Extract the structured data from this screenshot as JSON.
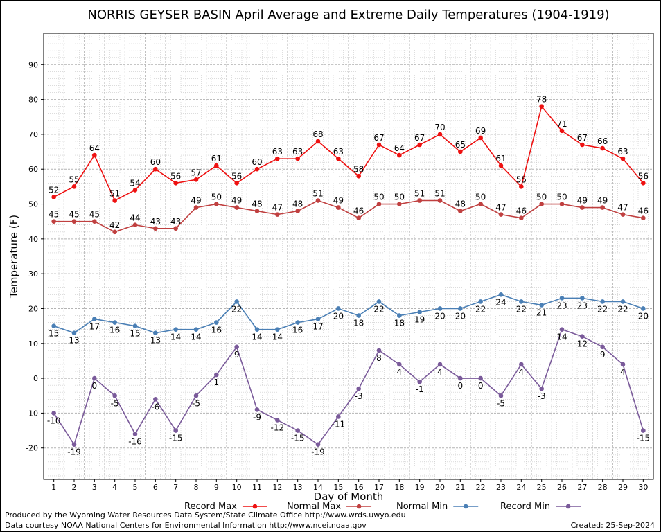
{
  "chart_data": {
    "type": "line",
    "title": "NORRIS GEYSER BASIN April Average and Extreme Daily Temperatures (1904-1919)",
    "xlabel": "Day of Month",
    "ylabel": "Temperature (F)",
    "x": [
      1,
      2,
      3,
      4,
      5,
      6,
      7,
      8,
      9,
      10,
      11,
      12,
      13,
      14,
      15,
      16,
      17,
      18,
      19,
      20,
      21,
      22,
      23,
      24,
      25,
      26,
      27,
      28,
      29,
      30
    ],
    "xlim": [
      0.5,
      30.5
    ],
    "ylim": [
      -29,
      99
    ],
    "yticks": [
      -20,
      -10,
      0,
      10,
      20,
      30,
      40,
      50,
      60,
      70,
      80,
      90
    ],
    "grid": true,
    "legend_position": "bottom",
    "series": [
      {
        "name": "Record Max",
        "color": "#ee1111",
        "values": [
          52,
          55,
          64,
          51,
          54,
          60,
          56,
          57,
          61,
          56,
          60,
          63,
          63,
          68,
          63,
          58,
          67,
          64,
          67,
          70,
          65,
          69,
          61,
          55,
          78,
          71,
          67,
          66,
          63,
          56
        ]
      },
      {
        "name": "Normal Max",
        "color": "#c04040",
        "values": [
          45,
          45,
          45,
          42,
          44,
          43,
          43,
          49,
          50,
          49,
          48,
          47,
          48,
          51,
          49,
          46,
          50,
          50,
          51,
          51,
          48,
          50,
          47,
          46,
          50,
          50,
          49,
          49,
          47,
          46
        ]
      },
      {
        "name": "Normal Min",
        "color": "#4a7fb5",
        "values": [
          15,
          13,
          17,
          16,
          15,
          13,
          14,
          14,
          16,
          22,
          14,
          14,
          16,
          17,
          20,
          18,
          22,
          18,
          19,
          20,
          20,
          22,
          24,
          22,
          21,
          23,
          23,
          22,
          22,
          20
        ]
      },
      {
        "name": "Record Min",
        "color": "#7a5a9a",
        "values": [
          -10,
          -19,
          0,
          -5,
          -16,
          -6,
          -15,
          -5,
          1,
          9,
          -9,
          -12,
          -15,
          -19,
          -11,
          -3,
          8,
          4,
          -1,
          4,
          0,
          0,
          -5,
          4,
          -3,
          14,
          12,
          9,
          4,
          -15
        ]
      }
    ]
  },
  "footer": {
    "produced_by": "Produced by the Wyoming Water Resources Data System/State Climate Office http://www.wrds.uwyo.edu",
    "courtesy": "Data courtesy NOAA National Centers for Environmental Information http://www.ncei.noaa.gov",
    "created": "Created:  25-Sep-2024"
  }
}
